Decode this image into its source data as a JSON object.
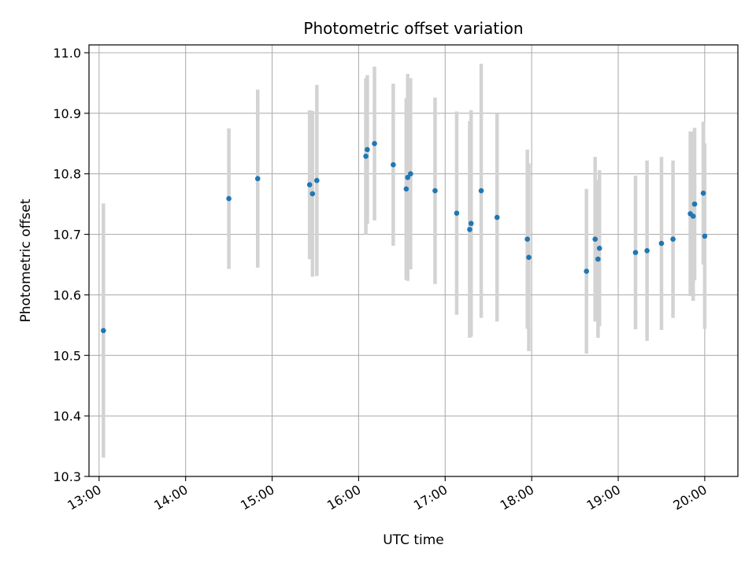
{
  "chart_data": {
    "type": "scatter",
    "title": "Photometric offset variation",
    "xlabel": "UTC time",
    "ylabel": "Photometric offset",
    "xlim": [
      "12:53",
      "20:23"
    ],
    "ylim": [
      10.3,
      11.013
    ],
    "x_ticks": [
      "13:00",
      "14:00",
      "15:00",
      "16:00",
      "17:00",
      "18:00",
      "19:00",
      "20:00"
    ],
    "y_ticks": [
      "10.3",
      "10.4",
      "10.5",
      "10.6",
      "10.7",
      "10.8",
      "10.9",
      "11.0"
    ],
    "grid": true,
    "marker_color": "#1f77b4",
    "errorbar_color": "#d3d3d3",
    "points": [
      {
        "x": "13:03",
        "y": 10.541,
        "err": 0.21
      },
      {
        "x": "14:30",
        "y": 10.759,
        "err": 0.116
      },
      {
        "x": "14:50",
        "y": 10.792,
        "err": 0.147
      },
      {
        "x": "15:26",
        "y": 10.782,
        "err": 0.123
      },
      {
        "x": "15:28",
        "y": 10.767,
        "err": 0.137
      },
      {
        "x": "15:31",
        "y": 10.789,
        "err": 0.158
      },
      {
        "x": "16:05",
        "y": 10.829,
        "err": 0.129
      },
      {
        "x": "16:06",
        "y": 10.84,
        "err": 0.123
      },
      {
        "x": "16:11",
        "y": 10.85,
        "err": 0.127
      },
      {
        "x": "16:24",
        "y": 10.815,
        "err": 0.134
      },
      {
        "x": "16:33",
        "y": 10.775,
        "err": 0.15
      },
      {
        "x": "16:34",
        "y": 10.794,
        "err": 0.171
      },
      {
        "x": "16:36",
        "y": 10.8,
        "err": 0.158
      },
      {
        "x": "16:53",
        "y": 10.772,
        "err": 0.154
      },
      {
        "x": "17:08",
        "y": 10.735,
        "err": 0.168
      },
      {
        "x": "17:17",
        "y": 10.708,
        "err": 0.179
      },
      {
        "x": "17:18",
        "y": 10.718,
        "err": 0.187
      },
      {
        "x": "17:25",
        "y": 10.772,
        "err": 0.21
      },
      {
        "x": "17:36",
        "y": 10.728,
        "err": 0.172
      },
      {
        "x": "17:57",
        "y": 10.692,
        "err": 0.148
      },
      {
        "x": "17:58",
        "y": 10.662,
        "err": 0.155
      },
      {
        "x": "18:38",
        "y": 10.639,
        "err": 0.136
      },
      {
        "x": "18:44",
        "y": 10.692,
        "err": 0.136
      },
      {
        "x": "18:46",
        "y": 10.659,
        "err": 0.13
      },
      {
        "x": "18:47",
        "y": 10.677,
        "err": 0.129
      },
      {
        "x": "19:12",
        "y": 10.67,
        "err": 0.127
      },
      {
        "x": "19:20",
        "y": 10.673,
        "err": 0.149
      },
      {
        "x": "19:30",
        "y": 10.685,
        "err": 0.143
      },
      {
        "x": "19:38",
        "y": 10.692,
        "err": 0.13
      },
      {
        "x": "19:50",
        "y": 10.734,
        "err": 0.136
      },
      {
        "x": "19:52",
        "y": 10.73,
        "err": 0.14
      },
      {
        "x": "19:53",
        "y": 10.75,
        "err": 0.126
      },
      {
        "x": "19:59",
        "y": 10.768,
        "err": 0.118
      },
      {
        "x": "20:00",
        "y": 10.697,
        "err": 0.153
      }
    ]
  }
}
